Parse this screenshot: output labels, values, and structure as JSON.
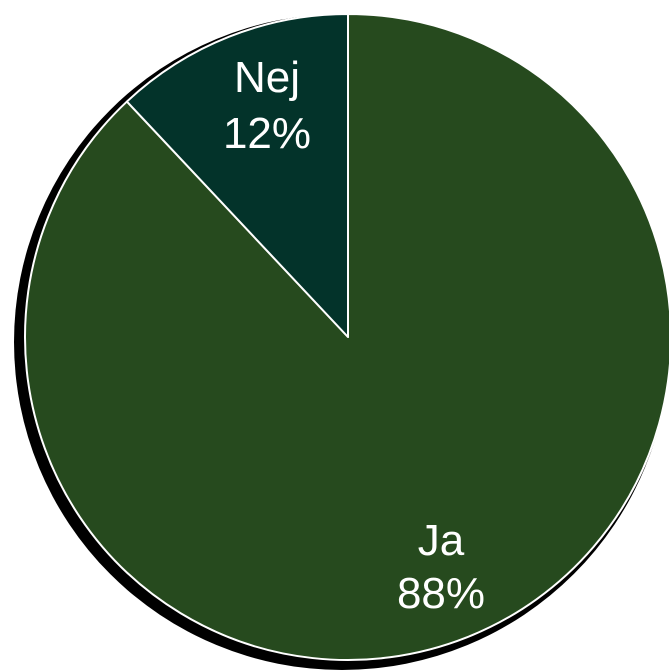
{
  "chart_data": {
    "type": "pie",
    "slices": [
      {
        "label": "Ja",
        "value": 88,
        "value_label": "88%",
        "color": "#264a1e"
      },
      {
        "label": "Nej",
        "value": 12,
        "value_label": "12%",
        "color": "#03332a"
      }
    ],
    "start": "top",
    "direction": "clockwise",
    "border_color": "#ffffff",
    "shadow_color": "#000000",
    "background": "#ffffff"
  }
}
